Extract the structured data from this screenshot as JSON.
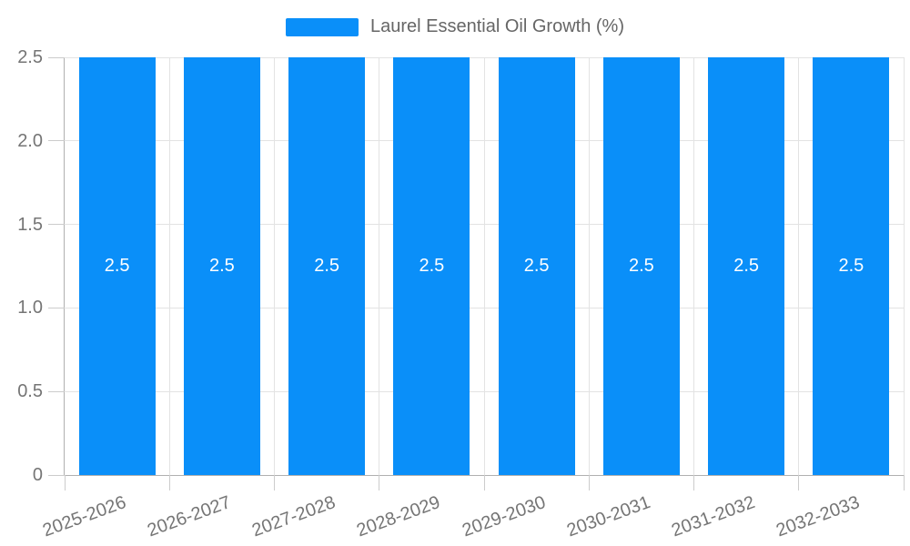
{
  "legend": {
    "label": "Laurel Essential Oil Growth (%)"
  },
  "colors": {
    "bar": "#0a8ff9",
    "bar_label": "#ffffff",
    "legend_text": "#666666",
    "axis_label": "#757575",
    "grid": "#e3e3e3",
    "axis_line": "#b0b0b0",
    "tick": "#cccccc"
  },
  "chart_data": {
    "type": "bar",
    "title": "",
    "xlabel": "",
    "ylabel": "",
    "legend_entries": [
      "Laurel Essential Oil Growth (%)"
    ],
    "legend_position": "top-center",
    "categories": [
      "2025-2026",
      "2026-2027",
      "2027-2028",
      "2028-2029",
      "2029-2030",
      "2030-2031",
      "2031-2032",
      "2032-2033"
    ],
    "series": [
      {
        "name": "Laurel Essential Oil Growth (%)",
        "values": [
          2.5,
          2.5,
          2.5,
          2.5,
          2.5,
          2.5,
          2.5,
          2.5
        ]
      }
    ],
    "value_labels": [
      "2.5",
      "2.5",
      "2.5",
      "2.5",
      "2.5",
      "2.5",
      "2.5",
      "2.5"
    ],
    "y_ticks": [
      0,
      0.5,
      1.0,
      1.5,
      2.0,
      2.5
    ],
    "y_tick_labels": [
      "0",
      "0.5",
      "1.0",
      "1.5",
      "2.0",
      "2.5"
    ],
    "ylim": [
      0,
      2.5
    ],
    "grid": true,
    "bar_label_position": "center"
  }
}
